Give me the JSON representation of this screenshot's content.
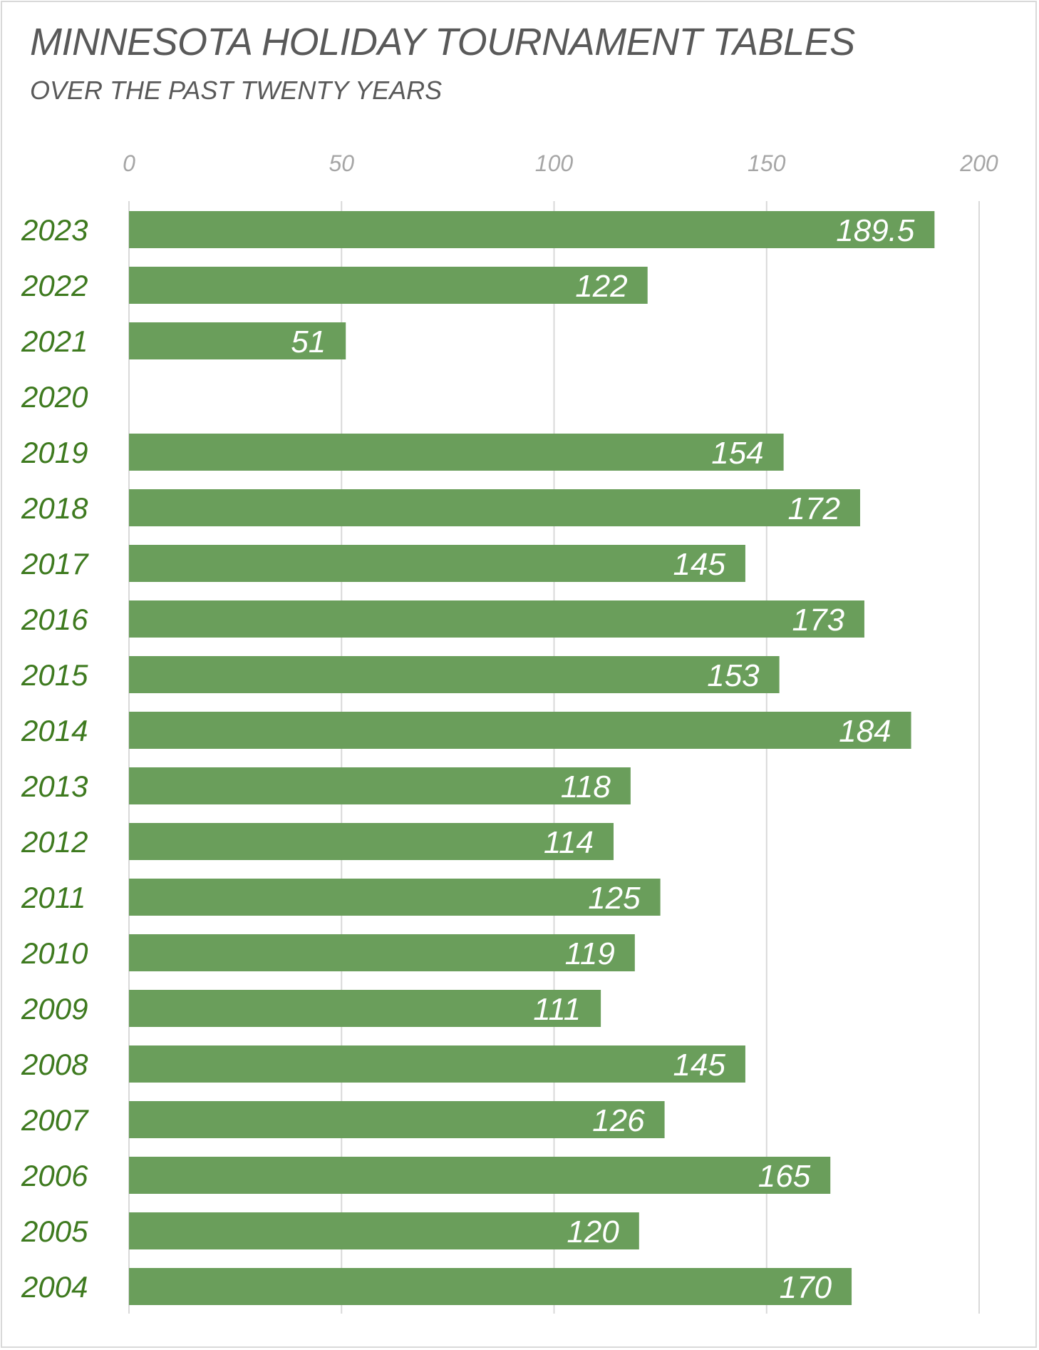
{
  "header": {
    "title": "MINNESOTA HOLIDAY TOURNAMENT TABLES",
    "subtitle": "OVER THE PAST TWENTY YEARS"
  },
  "colors": {
    "bar": "#6a9e5b",
    "category_text": "#3e7a1f",
    "gridline": "#d9d9d9",
    "tick_text": "#a6a6a6",
    "title_text": "#595959"
  },
  "chart_data": {
    "type": "bar",
    "orientation": "horizontal",
    "title": "MINNESOTA HOLIDAY TOURNAMENT TABLES",
    "subtitle": "OVER THE PAST TWENTY YEARS",
    "categories": [
      "2023",
      "2022",
      "2021",
      "2020",
      "2019",
      "2018",
      "2017",
      "2016",
      "2015",
      "2014",
      "2013",
      "2012",
      "2011",
      "2010",
      "2009",
      "2008",
      "2007",
      "2006",
      "2005",
      "2004"
    ],
    "values": [
      189.5,
      122,
      51,
      null,
      154,
      172,
      145,
      173,
      153,
      184,
      118,
      114,
      125,
      119,
      111,
      145,
      126,
      165,
      120,
      170
    ],
    "data_labels": [
      "189.5",
      "122",
      "51",
      "",
      "154",
      "172",
      "145",
      "173",
      "153",
      "184",
      "118",
      "114",
      "125",
      "119",
      "111",
      "145",
      "126",
      "165",
      "120",
      "170"
    ],
    "xlim": [
      0,
      200
    ],
    "xticks": [
      0,
      50,
      100,
      150,
      200
    ],
    "xtick_labels": [
      "0",
      "50",
      "100",
      "150",
      "200"
    ],
    "axis_position": "top",
    "grid": true,
    "legend": "none"
  }
}
